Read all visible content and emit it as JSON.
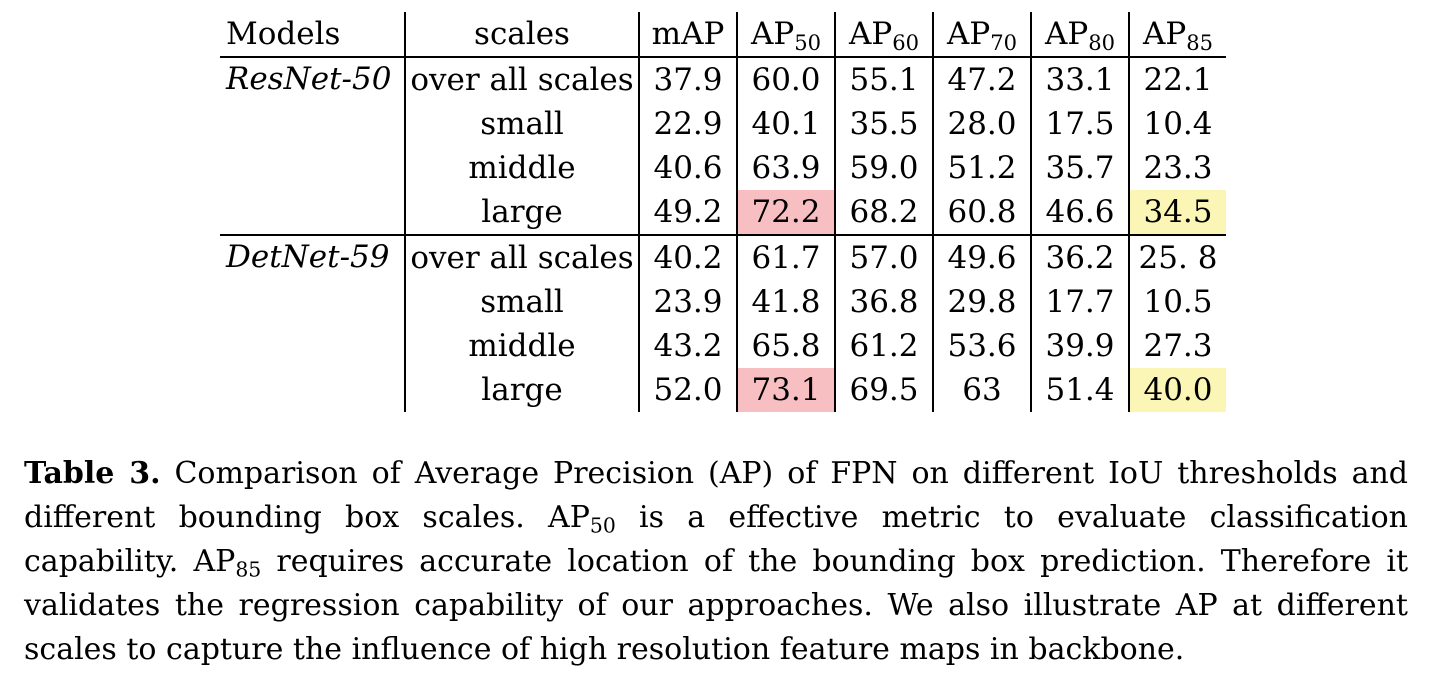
{
  "table": {
    "headers": [
      "Models",
      "scales",
      "mAP",
      "AP",
      "AP",
      "AP",
      "AP",
      "AP"
    ],
    "header_subscripts": [
      "",
      "",
      "",
      "50",
      "60",
      "70",
      "80",
      "85"
    ],
    "groups": [
      {
        "model": "ResNet-50",
        "rows": [
          {
            "scale": "over all scales",
            "values": [
              "37.9",
              "60.0",
              "55.1",
              "47.2",
              "33.1",
              "22.1"
            ]
          },
          {
            "scale": "small",
            "values": [
              "22.9",
              "40.1",
              "35.5",
              "28.0",
              "17.5",
              "10.4"
            ]
          },
          {
            "scale": "middle",
            "values": [
              "40.6",
              "63.9",
              "59.0",
              "51.2",
              "35.7",
              "23.3"
            ]
          },
          {
            "scale": "large",
            "values": [
              "49.2",
              "72.2",
              "68.2",
              "60.8",
              "46.6",
              "34.5"
            ]
          }
        ]
      },
      {
        "model": "DetNet-59",
        "rows": [
          {
            "scale": "over all scales",
            "values": [
              "40.2",
              "61.7",
              "57.0",
              "49.6",
              "36.2",
              "25. 8"
            ]
          },
          {
            "scale": "small",
            "values": [
              "23.9",
              "41.8",
              "36.8",
              "29.8",
              "17.7",
              "10.5"
            ]
          },
          {
            "scale": "middle",
            "values": [
              "43.2",
              "65.8",
              "61.2",
              "53.6",
              "39.9",
              "27.3"
            ]
          },
          {
            "scale": "large",
            "values": [
              "52.0",
              "73.1",
              "69.5",
              "63",
              "51.4",
              "40.0"
            ]
          }
        ]
      }
    ],
    "highlights": [
      {
        "group": 0,
        "row": 3,
        "col": 1,
        "color": "#f8bfc3"
      },
      {
        "group": 0,
        "row": 3,
        "col": 5,
        "color": "#fbf6b6"
      },
      {
        "group": 1,
        "row": 3,
        "col": 1,
        "color": "#f8bfc3"
      },
      {
        "group": 1,
        "row": 3,
        "col": 5,
        "color": "#fbf6b6"
      }
    ]
  },
  "caption": {
    "label": "Table 3.",
    "part1": " Comparison of Average Precision (AP) of FPN on different IoU thresholds and different bounding box scales. AP",
    "sub1": "50",
    "part2": " is a effective metric to evaluate classification capability. AP",
    "sub2": "85",
    "part3": " requires accurate location of the bounding box prediction. Therefore it validates the regression capability of our approaches. We also illustrate AP at different scales to capture the influence of high resolution feature maps in backbone."
  }
}
